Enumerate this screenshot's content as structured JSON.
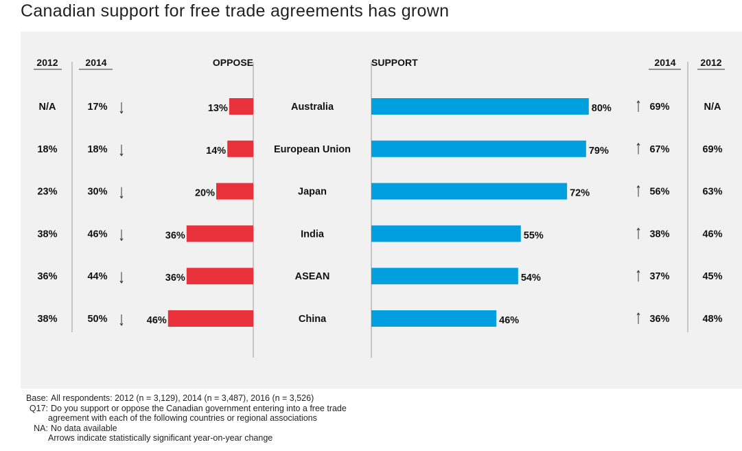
{
  "title": "Canadian support for free trade agreements has grown",
  "headers": {
    "left_2012": "2012",
    "left_2014": "2014",
    "oppose": "OPPOSE",
    "support": "SUPPORT",
    "right_2014": "2014",
    "right_2012": "2012"
  },
  "chart_data": {
    "type": "bar",
    "title": "Canadian support for free trade agreements has grown",
    "categories": [
      "Australia",
      "European Union",
      "Japan",
      "India",
      "ASEAN",
      "China"
    ],
    "series": [
      {
        "name": "OPPOSE",
        "values": [
          13,
          14,
          20,
          36,
          36,
          46
        ],
        "labels": [
          "13%",
          "14%",
          "20%",
          "36%",
          "36%",
          "46%"
        ]
      },
      {
        "name": "SUPPORT",
        "values": [
          80,
          79,
          72,
          55,
          54,
          46
        ],
        "labels": [
          "80%",
          "79%",
          "72%",
          "55%",
          "54%",
          "46%"
        ]
      }
    ],
    "oppose_2014": [
      "17%",
      "18%",
      "30%",
      "46%",
      "44%",
      "50%"
    ],
    "oppose_2012": [
      "N/A",
      "18%",
      "23%",
      "38%",
      "36%",
      "38%"
    ],
    "support_2014": [
      "69%",
      "67%",
      "56%",
      "38%",
      "37%",
      "36%"
    ],
    "support_2012": [
      "N/A",
      "69%",
      "63%",
      "46%",
      "45%",
      "48%"
    ],
    "oppose_trend": [
      "down",
      "down",
      "down",
      "down",
      "down",
      "down"
    ],
    "support_trend": [
      "up",
      "up",
      "up",
      "up",
      "up",
      "up"
    ],
    "colors": {
      "oppose": "#e8313a",
      "support": "#00a0e0"
    },
    "xlim": [
      0,
      100
    ]
  },
  "footer": {
    "base_key": "Base:",
    "base_text": "All respondents: 2012 (n = 3,129), 2014 (n = 3,487), 2016 (n = 3,526)",
    "q_key": "Q17:",
    "q_text_1": "Do you support or oppose the Canadian government entering into a free trade",
    "q_text_2": "agreement with each of the following countries or regional associations",
    "na_key": "NA:",
    "na_text": "No data available",
    "arrow_note": "Arrows indicate statistically significant year-on-year change"
  }
}
